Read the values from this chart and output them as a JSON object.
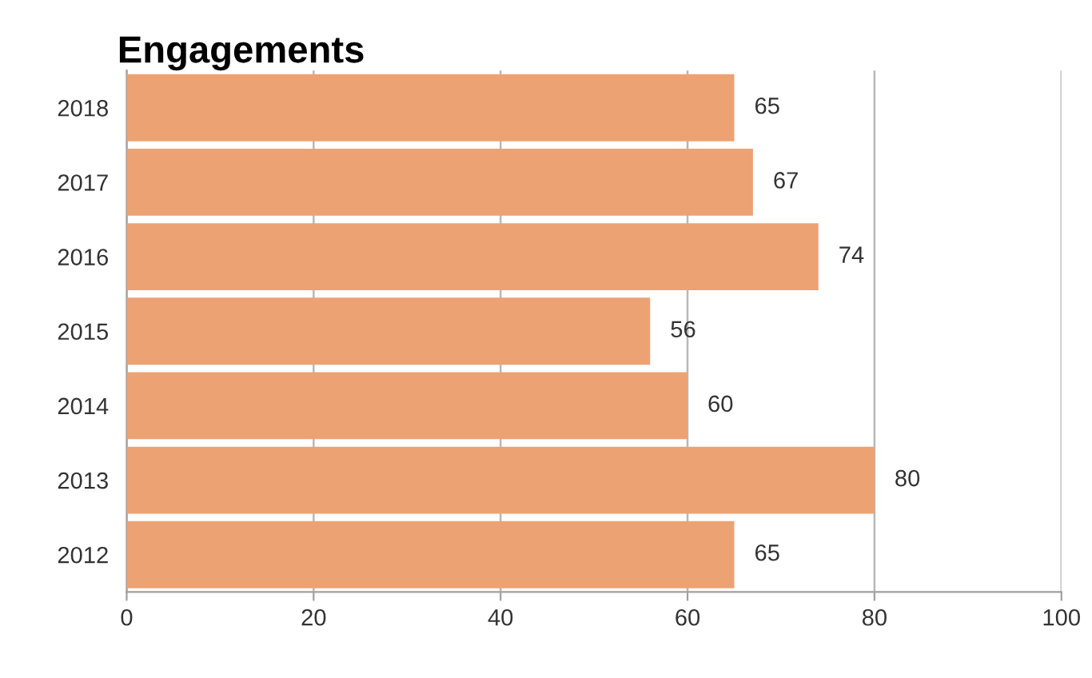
{
  "chart_data": {
    "type": "bar",
    "orientation": "horizontal",
    "title": "Engagements",
    "categories": [
      "2018",
      "2017",
      "2016",
      "2015",
      "2014",
      "2013",
      "2012"
    ],
    "values": [
      65,
      67,
      74,
      56,
      60,
      80,
      65
    ],
    "color": "#eda273",
    "xlim": [
      0,
      100
    ],
    "xticks": [
      0,
      20,
      40,
      60,
      80,
      100
    ],
    "grid": "x",
    "data_labels": true
  }
}
